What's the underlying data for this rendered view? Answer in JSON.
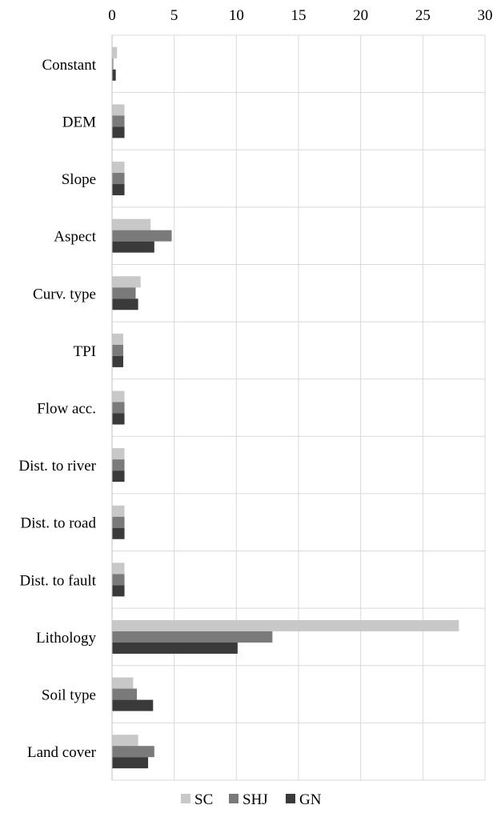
{
  "chart_data": {
    "type": "bar",
    "orientation": "horizontal",
    "categories": [
      "Constant",
      "DEM",
      "Slope",
      "Aspect",
      "Curv. type",
      "TPI",
      "Flow acc.",
      "Dist. to river",
      "Dist. to road",
      "Dist. to fault",
      "Lithology",
      "Soil type",
      "Land cover"
    ],
    "series": [
      {
        "name": "SC",
        "color": "#c8c8c8",
        "values": [
          0.4,
          1.0,
          1.0,
          3.1,
          2.3,
          0.9,
          1.0,
          1.0,
          1.0,
          1.0,
          27.9,
          1.7,
          2.1
        ]
      },
      {
        "name": "SHJ",
        "color": "#7a7a7a",
        "values": [
          0.1,
          1.0,
          1.0,
          4.8,
          1.9,
          0.9,
          1.0,
          1.0,
          1.0,
          1.0,
          12.9,
          2.0,
          3.4
        ]
      },
      {
        "name": "GN",
        "color": "#3a3a3a",
        "values": [
          0.3,
          1.0,
          1.0,
          3.4,
          2.1,
          0.9,
          1.0,
          1.0,
          1.0,
          1.0,
          10.1,
          3.3,
          2.9
        ]
      }
    ],
    "xlim": [
      0,
      30
    ],
    "xticks": [
      "0",
      "5",
      "10",
      "15",
      "20",
      "25",
      "30"
    ],
    "grid": true,
    "legend_position": "bottom"
  }
}
